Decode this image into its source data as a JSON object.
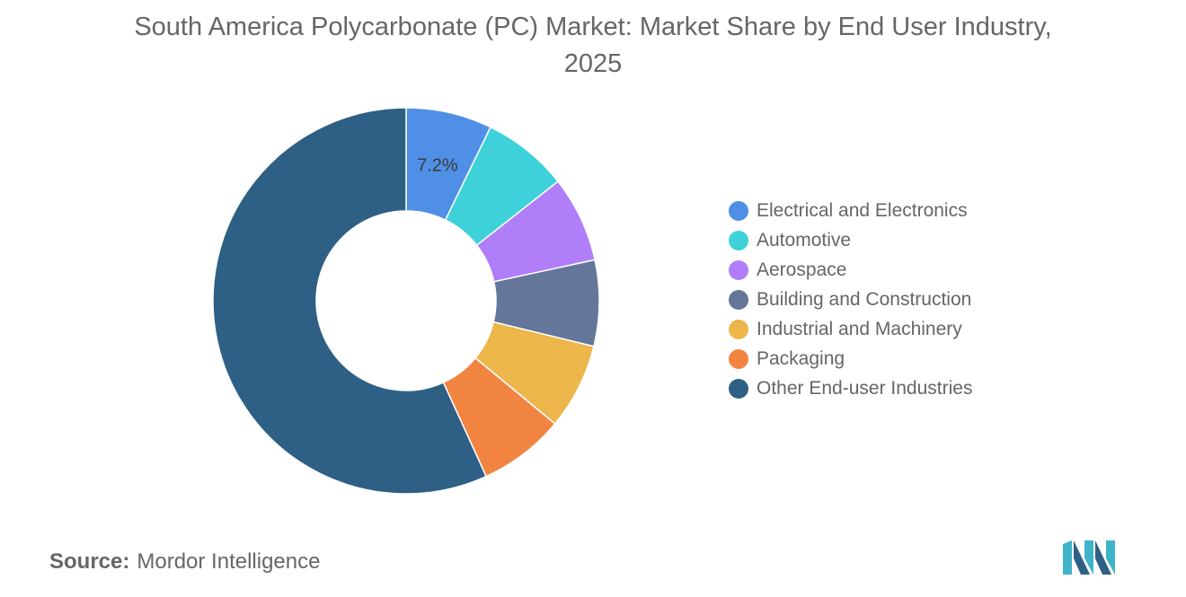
{
  "title": "South America Polycarbonate (PC) Market: Market Share by End User Industry, 2025",
  "source": {
    "label": "Source:",
    "value": "Mordor Intelligence"
  },
  "chart_data": {
    "type": "pie",
    "title": "South America Polycarbonate (PC) Market: Market Share by End User Industry, 2025",
    "unit": "%",
    "start_angle_deg": 90,
    "direction": "clockwise",
    "legend_position": "right",
    "labels": [
      "Electrical and Electronics",
      "Automotive",
      "Aerospace",
      "Building and Construction",
      "Industrial and Machinery",
      "Packaging",
      "Other End-user Industries"
    ],
    "values": [
      7.2,
      7.2,
      7.2,
      7.2,
      7.2,
      7.2,
      56.8
    ],
    "colors": [
      "#4f8fe6",
      "#3fd1da",
      "#b07ef8",
      "#64779a",
      "#ecb64a",
      "#f28442",
      "#2e5f85"
    ],
    "data_labels": [
      {
        "index": 0,
        "text": "7.2%"
      }
    ]
  }
}
